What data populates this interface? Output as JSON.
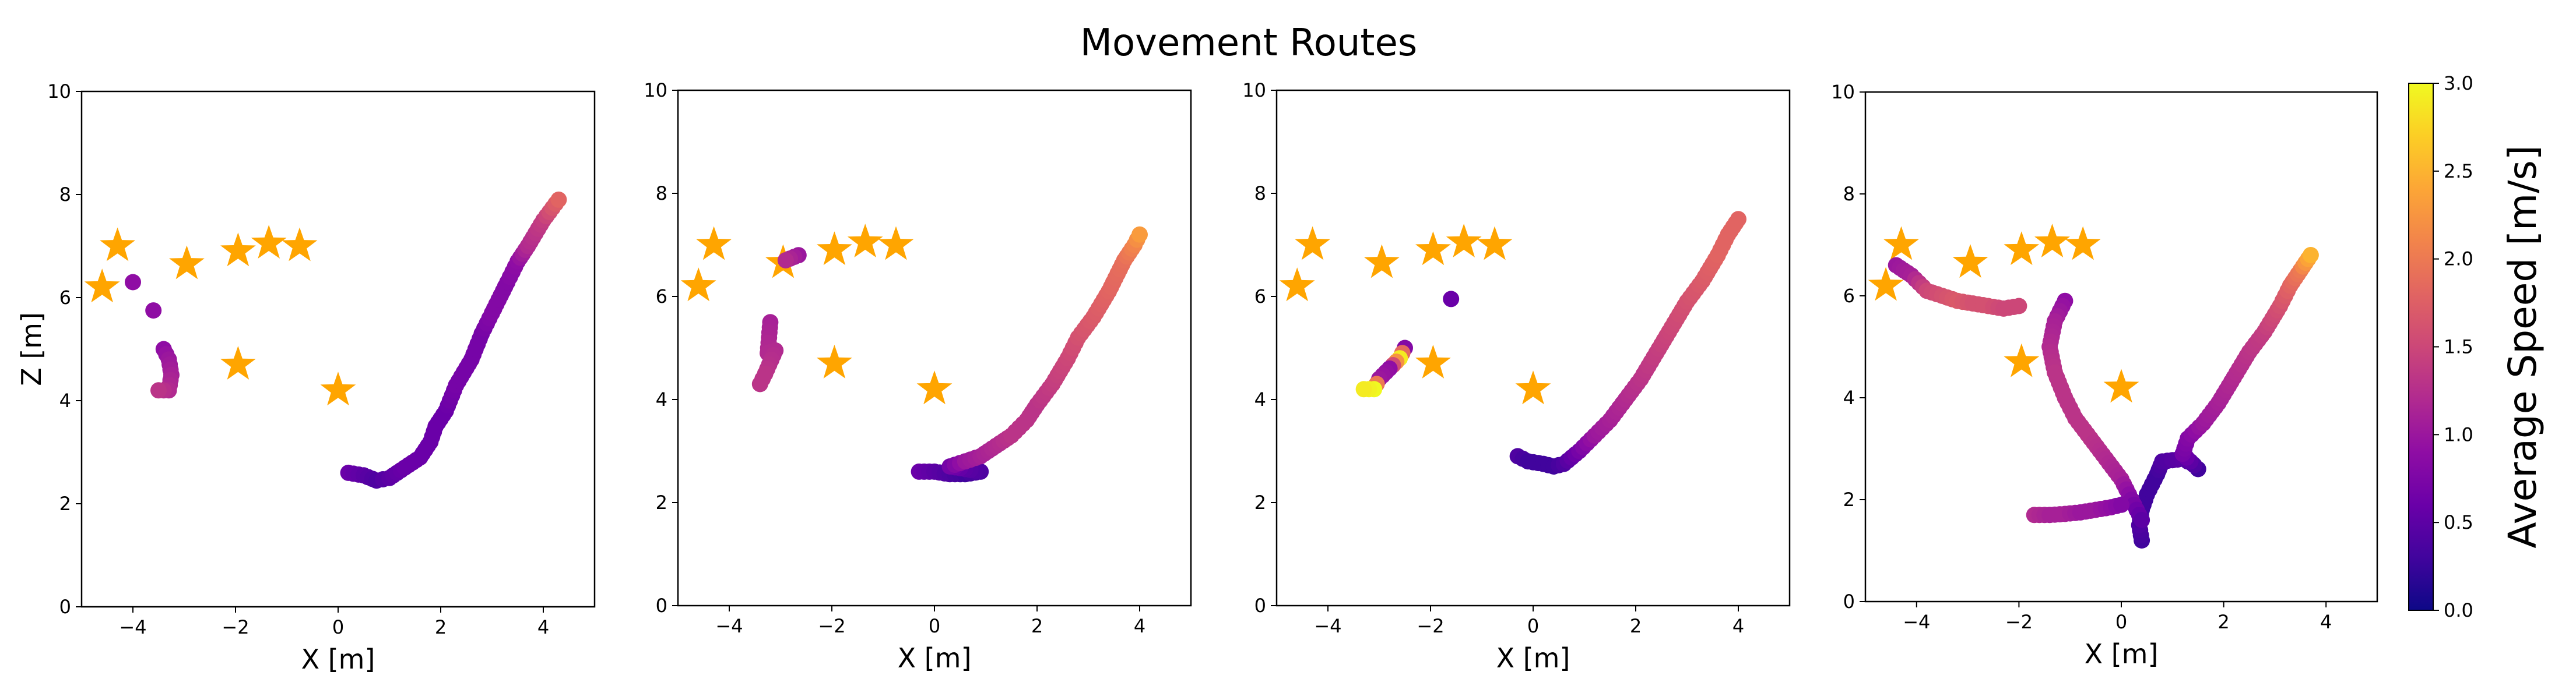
{
  "title": "Movement Routes",
  "colorbar": {
    "label": "Average Speed [m/s]",
    "range": [
      0.0,
      3.0
    ],
    "ticks": [
      "0.0",
      "0.5",
      "1.0",
      "1.5",
      "2.0",
      "2.5",
      "3.0"
    ],
    "colormap": "plasma"
  },
  "colors": {
    "stars": "#FFA500",
    "axes": "#000000"
  },
  "chart_data": [
    {
      "type": "scatter",
      "xlabel": "X [m]",
      "ylabel": "Z [m]",
      "xlim": [
        -5,
        5
      ],
      "ylim": [
        0,
        10
      ],
      "xticks": [
        -4,
        -2,
        0,
        2,
        4
      ],
      "yticks": [
        0,
        2,
        4,
        6,
        8,
        10
      ],
      "stars": [
        [
          -4.6,
          6.2
        ],
        [
          -4.3,
          7.0
        ],
        [
          -2.95,
          6.65
        ],
        [
          -1.95,
          6.9
        ],
        [
          -1.35,
          7.05
        ],
        [
          -0.75,
          7.0
        ],
        [
          -1.95,
          4.7
        ],
        [
          0.0,
          4.2
        ]
      ],
      "paths": [
        {
          "points": [
            [
              0.2,
              2.6
            ],
            [
              0.5,
              2.55
            ],
            [
              0.75,
              2.45
            ],
            [
              1.0,
              2.5
            ],
            [
              1.3,
              2.7
            ],
            [
              1.6,
              2.9
            ],
            [
              1.8,
              3.2
            ],
            [
              1.9,
              3.5
            ],
            [
              2.1,
              3.8
            ],
            [
              2.3,
              4.3
            ],
            [
              2.6,
              4.8
            ],
            [
              2.8,
              5.3
            ],
            [
              3.0,
              5.7
            ],
            [
              3.3,
              6.3
            ],
            [
              3.5,
              6.7
            ],
            [
              3.7,
              7.0
            ],
            [
              4.0,
              7.5
            ],
            [
              4.3,
              7.9
            ]
          ],
          "speeds": [
            0.6,
            0.5,
            0.4,
            0.5,
            0.6,
            0.6,
            0.6,
            0.6,
            0.6,
            0.7,
            0.7,
            0.7,
            0.8,
            0.8,
            0.9,
            1.2,
            1.4,
            1.8
          ]
        },
        {
          "points": [
            [
              -4.0,
              6.3
            ]
          ],
          "speeds": [
            0.9
          ]
        },
        {
          "points": [
            [
              -3.6,
              5.75
            ]
          ],
          "speeds": [
            0.9
          ]
        },
        {
          "points": [
            [
              -3.4,
              5.0
            ],
            [
              -3.3,
              4.8
            ],
            [
              -3.25,
              4.5
            ],
            [
              -3.3,
              4.2
            ],
            [
              -3.5,
              4.2
            ]
          ],
          "speeds": [
            0.9,
            1.0,
            1.1,
            1.2,
            1.3
          ]
        }
      ]
    },
    {
      "type": "scatter",
      "xlabel": "X [m]",
      "ylabel": "",
      "xlim": [
        -5,
        5
      ],
      "ylim": [
        0,
        10
      ],
      "xticks": [
        -4,
        -2,
        0,
        2,
        4
      ],
      "yticks": [
        0,
        2,
        4,
        6,
        8,
        10
      ],
      "stars": [
        [
          -4.6,
          6.2
        ],
        [
          -4.3,
          7.0
        ],
        [
          -2.95,
          6.65
        ],
        [
          -1.95,
          6.9
        ],
        [
          -1.35,
          7.05
        ],
        [
          -0.75,
          7.0
        ],
        [
          -1.95,
          4.7
        ],
        [
          0.0,
          4.2
        ]
      ],
      "paths": [
        {
          "points": [
            [
              -0.3,
              2.6
            ],
            [
              0.0,
              2.6
            ],
            [
              0.3,
              2.55
            ],
            [
              0.6,
              2.55
            ],
            [
              0.9,
              2.6
            ],
            [
              0.6,
              2.65
            ],
            [
              0.3,
              2.7
            ],
            [
              0.6,
              2.8
            ],
            [
              0.9,
              2.9
            ],
            [
              1.2,
              3.1
            ],
            [
              1.5,
              3.3
            ],
            [
              1.8,
              3.6
            ],
            [
              2.0,
              3.9
            ],
            [
              2.3,
              4.3
            ],
            [
              2.6,
              4.8
            ],
            [
              2.8,
              5.2
            ],
            [
              3.1,
              5.6
            ],
            [
              3.4,
              6.1
            ],
            [
              3.7,
              6.7
            ],
            [
              3.9,
              7.0
            ],
            [
              4.0,
              7.2
            ]
          ],
          "speeds": [
            0.6,
            0.5,
            0.4,
            0.3,
            0.4,
            0.5,
            0.7,
            1.0,
            1.1,
            1.2,
            1.3,
            1.3,
            1.3,
            1.4,
            1.5,
            1.6,
            1.7,
            1.8,
            1.9,
            2.1,
            2.3
          ]
        },
        {
          "points": [
            [
              -2.65,
              6.8
            ],
            [
              -2.9,
              6.7
            ]
          ],
          "speeds": [
            1.0,
            1.2
          ]
        },
        {
          "points": [
            [
              -3.2,
              5.5
            ],
            [
              -3.25,
              4.9
            ],
            [
              -3.1,
              4.95
            ],
            [
              -3.3,
              4.5
            ],
            [
              -3.4,
              4.3
            ]
          ],
          "speeds": [
            1.1,
            1.2,
            1.2,
            1.3,
            1.3
          ]
        }
      ]
    },
    {
      "type": "scatter",
      "xlabel": "X [m]",
      "ylabel": "",
      "xlim": [
        -5,
        5
      ],
      "ylim": [
        0,
        10
      ],
      "xticks": [
        -4,
        -2,
        0,
        2,
        4
      ],
      "yticks": [
        0,
        2,
        4,
        6,
        8,
        10
      ],
      "stars": [
        [
          -4.6,
          6.2
        ],
        [
          -4.3,
          7.0
        ],
        [
          -2.95,
          6.65
        ],
        [
          -1.95,
          6.9
        ],
        [
          -1.35,
          7.05
        ],
        [
          -0.75,
          7.0
        ],
        [
          -1.95,
          4.7
        ],
        [
          0.0,
          4.2
        ]
      ],
      "paths": [
        {
          "points": [
            [
              -0.3,
              2.9
            ],
            [
              -0.1,
              2.8
            ],
            [
              0.2,
              2.75
            ],
            [
              0.4,
              2.7
            ],
            [
              0.6,
              2.75
            ],
            [
              0.9,
              3.0
            ],
            [
              1.2,
              3.3
            ],
            [
              1.5,
              3.6
            ],
            [
              1.8,
              4.0
            ],
            [
              2.1,
              4.4
            ],
            [
              2.4,
              4.9
            ],
            [
              2.7,
              5.4
            ],
            [
              3.0,
              5.9
            ],
            [
              3.3,
              6.3
            ],
            [
              3.6,
              6.8
            ],
            [
              3.8,
              7.2
            ],
            [
              4.0,
              7.5
            ]
          ],
          "speeds": [
            0.4,
            0.3,
            0.3,
            0.3,
            0.4,
            0.7,
            1.0,
            1.1,
            1.2,
            1.3,
            1.4,
            1.5,
            1.6,
            1.7,
            1.8,
            1.8,
            1.8
          ]
        },
        {
          "points": [
            [
              -1.6,
              5.95
            ]
          ],
          "speeds": [
            0.6
          ]
        },
        {
          "points": [
            [
              -2.5,
              5.0
            ],
            [
              -2.6,
              4.8
            ],
            [
              -2.8,
              4.6
            ],
            [
              -3.0,
              4.4
            ],
            [
              -3.1,
              4.2
            ],
            [
              -3.3,
              4.2
            ]
          ],
          "speeds": [
            0.8,
            2.9,
            0.9,
            1.0,
            3.0,
            2.9
          ]
        }
      ]
    },
    {
      "type": "scatter",
      "xlabel": "X [m]",
      "ylabel": "",
      "xlim": [
        -5,
        5
      ],
      "ylim": [
        0,
        10
      ],
      "xticks": [
        -4,
        -2,
        0,
        2,
        4
      ],
      "yticks": [
        0,
        2,
        4,
        6,
        8,
        10
      ],
      "stars": [
        [
          -4.6,
          6.2
        ],
        [
          -4.3,
          7.0
        ],
        [
          -2.95,
          6.65
        ],
        [
          -1.95,
          6.9
        ],
        [
          -1.35,
          7.05
        ],
        [
          -0.75,
          7.0
        ],
        [
          -1.95,
          4.7
        ],
        [
          0.0,
          4.2
        ]
      ],
      "paths": [
        {
          "points": [
            [
              0.4,
              1.2
            ],
            [
              0.35,
              1.5
            ],
            [
              0.4,
              1.8
            ],
            [
              0.5,
              2.1
            ],
            [
              0.7,
              2.5
            ],
            [
              0.8,
              2.75
            ],
            [
              1.2,
              2.8
            ],
            [
              1.4,
              2.7
            ],
            [
              1.5,
              2.6
            ],
            [
              1.2,
              2.9
            ],
            [
              1.3,
              3.2
            ],
            [
              1.6,
              3.5
            ],
            [
              1.9,
              3.9
            ],
            [
              2.2,
              4.4
            ],
            [
              2.5,
              4.9
            ],
            [
              2.8,
              5.3
            ],
            [
              3.1,
              5.8
            ],
            [
              3.3,
              6.2
            ],
            [
              3.5,
              6.5
            ],
            [
              3.7,
              6.8
            ]
          ],
          "speeds": [
            0.3,
            0.4,
            0.3,
            0.3,
            0.3,
            0.4,
            0.5,
            0.4,
            0.3,
            0.7,
            0.8,
            1.0,
            1.1,
            1.2,
            1.3,
            1.4,
            1.6,
            1.8,
            2.0,
            2.5
          ]
        },
        {
          "points": [
            [
              -1.1,
              5.9
            ],
            [
              -1.3,
              5.5
            ],
            [
              -1.4,
              5.0
            ],
            [
              -1.3,
              4.5
            ],
            [
              -1.1,
              4.0
            ],
            [
              -0.9,
              3.6
            ],
            [
              -0.6,
              3.2
            ],
            [
              -0.3,
              2.8
            ],
            [
              0.0,
              2.4
            ],
            [
              0.2,
              2.0
            ],
            [
              0.4,
              1.6
            ]
          ],
          "speeds": [
            0.9,
            1.1,
            1.2,
            1.3,
            1.3,
            1.3,
            1.3,
            1.2,
            1.1,
            0.8,
            0.5
          ]
        },
        {
          "points": [
            [
              -4.4,
              6.6
            ],
            [
              -4.1,
              6.4
            ],
            [
              -3.8,
              6.1
            ],
            [
              -3.5,
              6.0
            ],
            [
              -3.2,
              5.9
            ],
            [
              -2.9,
              5.85
            ],
            [
              -2.6,
              5.8
            ],
            [
              -2.3,
              5.75
            ],
            [
              -2.0,
              5.8
            ]
          ],
          "speeds": [
            1.0,
            1.1,
            1.5,
            1.6,
            1.7,
            1.6,
            1.6,
            1.5,
            1.5
          ]
        },
        {
          "points": [
            [
              -1.7,
              1.7
            ],
            [
              -1.4,
              1.7
            ],
            [
              -1.1,
              1.72
            ],
            [
              -0.8,
              1.75
            ],
            [
              -0.5,
              1.8
            ],
            [
              -0.2,
              1.85
            ],
            [
              0.0,
              1.9
            ]
          ],
          "speeds": [
            1.2,
            1.1,
            1.1,
            1.0,
            1.0,
            0.9,
            0.8
          ]
        }
      ]
    }
  ]
}
